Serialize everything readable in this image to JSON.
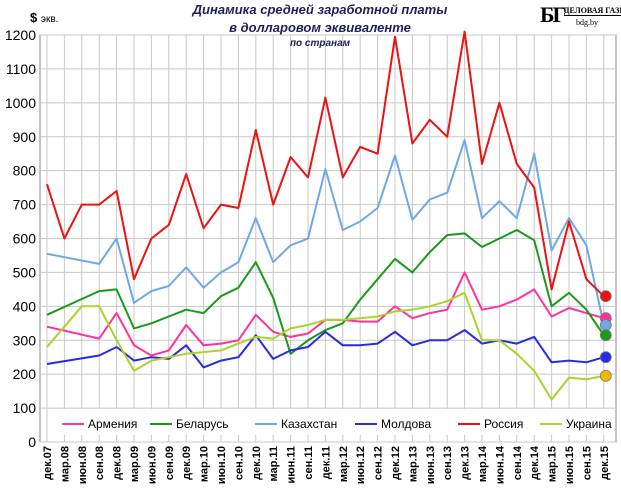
{
  "header": {
    "title_line1": "Динамика средней заработной платы",
    "title_line2": "в долларовом эквиваленте",
    "title_line3": "по странам",
    "unit_symbol": "$",
    "unit_text": "экв.",
    "logo_mark": "БГ",
    "logo_name": "ДЕЛОВАЯ ГАЗЕТА",
    "logo_site": "bdg.by"
  },
  "chart_data": {
    "type": "line",
    "title": "Динамика средней заработной платы в долларовом эквиваленте",
    "subtitle": "по странам",
    "ylabel": "$ экв.",
    "ylim": [
      0,
      1200
    ],
    "yticks": [
      0,
      100,
      200,
      300,
      400,
      500,
      600,
      700,
      800,
      900,
      1000,
      1100,
      1200
    ],
    "grid": true,
    "legend_position": "bottom-inside",
    "x_start": "2007-12",
    "x_end": "2015-12",
    "x_tick_labels": [
      "дек.07",
      "мар.08",
      "июн.08",
      "сен.08",
      "дек.08",
      "мар.09",
      "июн.09",
      "сен.09",
      "дек.09",
      "мар.10",
      "июн.10",
      "сен.10",
      "дек.10",
      "мар.11",
      "июн.11",
      "сен.11",
      "дек.11",
      "мар.12",
      "июн.12",
      "сен.12",
      "дек.12",
      "мар.13",
      "июн.13",
      "сен.13",
      "дек.13",
      "мар.14",
      "июн.14",
      "сен.14",
      "дек.14",
      "мар.15",
      "июн.15",
      "сен.15",
      "дек.15"
    ],
    "series": [
      {
        "name": "Армения",
        "color": "#ff3399",
        "points": [
          [
            "дек.07",
            340
          ],
          [
            "сен.08",
            305
          ],
          [
            "дек.08",
            380
          ],
          [
            "мар.09",
            285
          ],
          [
            "июн.09",
            255
          ],
          [
            "сен.09",
            270
          ],
          [
            "дек.09",
            345
          ],
          [
            "мар.10",
            285
          ],
          [
            "июн.10",
            290
          ],
          [
            "сен.10",
            300
          ],
          [
            "дек.10",
            375
          ],
          [
            "мар.11",
            325
          ],
          [
            "июн.11",
            310
          ],
          [
            "сен.11",
            320
          ],
          [
            "дек.11",
            360
          ],
          [
            "мар.12",
            360
          ],
          [
            "июн.12",
            355
          ],
          [
            "сен.12",
            355
          ],
          [
            "дек.12",
            400
          ],
          [
            "мар.13",
            365
          ],
          [
            "июн.13",
            380
          ],
          [
            "сен.13",
            390
          ],
          [
            "дек.13",
            500
          ],
          [
            "мар.14",
            390
          ],
          [
            "июн.14",
            400
          ],
          [
            "сен.14",
            420
          ],
          [
            "дек.14",
            450
          ],
          [
            "мар.15",
            370
          ],
          [
            "июн.15",
            395
          ],
          [
            "сен.15",
            380
          ],
          [
            "дек.15",
            365
          ]
        ]
      },
      {
        "name": "Беларусь",
        "color": "#1a9a1a",
        "points": [
          [
            "дек.07",
            375
          ],
          [
            "сен.08",
            445
          ],
          [
            "дек.08",
            450
          ],
          [
            "мар.09",
            335
          ],
          [
            "июн.09",
            350
          ],
          [
            "сен.09",
            370
          ],
          [
            "дек.09",
            390
          ],
          [
            "мар.10",
            380
          ],
          [
            "июн.10",
            430
          ],
          [
            "сен.10",
            455
          ],
          [
            "дек.10",
            530
          ],
          [
            "мар.11",
            425
          ],
          [
            "июн.11",
            260
          ],
          [
            "сен.11",
            300
          ],
          [
            "дек.11",
            330
          ],
          [
            "мар.12",
            350
          ],
          [
            "июн.12",
            420
          ],
          [
            "сен.12",
            480
          ],
          [
            "дек.12",
            540
          ],
          [
            "мар.13",
            500
          ],
          [
            "июн.13",
            560
          ],
          [
            "сен.13",
            610
          ],
          [
            "дек.13",
            615
          ],
          [
            "мар.14",
            575
          ],
          [
            "июн.14",
            600
          ],
          [
            "сен.14",
            625
          ],
          [
            "дек.14",
            595
          ],
          [
            "мар.15",
            400
          ],
          [
            "июн.15",
            440
          ],
          [
            "сен.15",
            390
          ],
          [
            "дек.15",
            315
          ]
        ]
      },
      {
        "name": "Казахстан",
        "color": "#6fa8e8",
        "points": [
          [
            "дек.07",
            555
          ],
          [
            "сен.08",
            525
          ],
          [
            "дек.08",
            600
          ],
          [
            "мар.09",
            410
          ],
          [
            "июн.09",
            445
          ],
          [
            "сен.09",
            460
          ],
          [
            "дек.09",
            515
          ],
          [
            "мар.10",
            455
          ],
          [
            "июн.10",
            500
          ],
          [
            "сен.10",
            530
          ],
          [
            "дек.10",
            660
          ],
          [
            "мар.11",
            530
          ],
          [
            "июн.11",
            580
          ],
          [
            "сен.11",
            600
          ],
          [
            "дек.11",
            805
          ],
          [
            "мар.12",
            625
          ],
          [
            "июн.12",
            650
          ],
          [
            "сен.12",
            690
          ],
          [
            "дек.12",
            845
          ],
          [
            "мар.13",
            655
          ],
          [
            "июн.13",
            715
          ],
          [
            "сен.13",
            735
          ],
          [
            "дек.13",
            890
          ],
          [
            "мар.14",
            660
          ],
          [
            "июн.14",
            710
          ],
          [
            "сен.14",
            660
          ],
          [
            "дек.14",
            850
          ],
          [
            "мар.15",
            565
          ],
          [
            "июн.15",
            660
          ],
          [
            "сен.15",
            580
          ],
          [
            "дек.15",
            345
          ]
        ]
      },
      {
        "name": "Молдова",
        "color": "#2a2ae0",
        "points": [
          [
            "дек.07",
            230
          ],
          [
            "сен.08",
            255
          ],
          [
            "дек.08",
            280
          ],
          [
            "мар.09",
            240
          ],
          [
            "июн.09",
            250
          ],
          [
            "сен.09",
            245
          ],
          [
            "дек.09",
            285
          ],
          [
            "мар.10",
            220
          ],
          [
            "июн.10",
            240
          ],
          [
            "сен.10",
            250
          ],
          [
            "дек.10",
            315
          ],
          [
            "мар.11",
            245
          ],
          [
            "июн.11",
            270
          ],
          [
            "сен.11",
            280
          ],
          [
            "дек.11",
            325
          ],
          [
            "мар.12",
            285
          ],
          [
            "июн.12",
            285
          ],
          [
            "сен.12",
            290
          ],
          [
            "дек.12",
            325
          ],
          [
            "мар.13",
            285
          ],
          [
            "июн.13",
            300
          ],
          [
            "сен.13",
            300
          ],
          [
            "дек.13",
            330
          ],
          [
            "мар.14",
            290
          ],
          [
            "июн.14",
            300
          ],
          [
            "сен.14",
            290
          ],
          [
            "дек.14",
            310
          ],
          [
            "мар.15",
            235
          ],
          [
            "июн.15",
            240
          ],
          [
            "сен.15",
            235
          ],
          [
            "дек.15",
            250
          ]
        ]
      },
      {
        "name": "Россия",
        "color": "#ee1111",
        "points": [
          [
            "дек.07",
            760
          ],
          [
            "мар.08",
            600
          ],
          [
            "июн.08",
            700
          ],
          [
            "сен.08",
            700
          ],
          [
            "дек.08",
            740
          ],
          [
            "мар.09",
            480
          ],
          [
            "июн.09",
            600
          ],
          [
            "сен.09",
            640
          ],
          [
            "дек.09",
            790
          ],
          [
            "мар.10",
            630
          ],
          [
            "июн.10",
            700
          ],
          [
            "сен.10",
            690
          ],
          [
            "дек.10",
            920
          ],
          [
            "мар.11",
            700
          ],
          [
            "июн.11",
            840
          ],
          [
            "сен.11",
            780
          ],
          [
            "дек.11",
            1015
          ],
          [
            "мар.12",
            780
          ],
          [
            "июн.12",
            870
          ],
          [
            "сен.12",
            850
          ],
          [
            "дек.12",
            1195
          ],
          [
            "мар.13",
            880
          ],
          [
            "июн.13",
            950
          ],
          [
            "сен.13",
            900
          ],
          [
            "дек.13",
            1210
          ],
          [
            "мар.14",
            820
          ],
          [
            "июн.14",
            1000
          ],
          [
            "сен.14",
            820
          ],
          [
            "дек.14",
            750
          ],
          [
            "мар.15",
            450
          ],
          [
            "июн.15",
            650
          ],
          [
            "сен.15",
            480
          ],
          [
            "дек.15",
            430
          ]
        ]
      },
      {
        "name": "Украина",
        "color": "#aad42a",
        "points": [
          [
            "дек.07",
            280
          ],
          [
            "июн.08",
            400
          ],
          [
            "сен.08",
            400
          ],
          [
            "дек.08",
            300
          ],
          [
            "мар.09",
            210
          ],
          [
            "июн.09",
            240
          ],
          [
            "сен.09",
            250
          ],
          [
            "дек.09",
            260
          ],
          [
            "мар.10",
            265
          ],
          [
            "июн.10",
            270
          ],
          [
            "сен.10",
            290
          ],
          [
            "дек.10",
            310
          ],
          [
            "мар.11",
            305
          ],
          [
            "июн.11",
            335
          ],
          [
            "сен.11",
            345
          ],
          [
            "дек.11",
            360
          ],
          [
            "мар.12",
            360
          ],
          [
            "июн.12",
            365
          ],
          [
            "сен.12",
            370
          ],
          [
            "дек.12",
            385
          ],
          [
            "мар.13",
            390
          ],
          [
            "июн.13",
            400
          ],
          [
            "сен.13",
            415
          ],
          [
            "дек.13",
            440
          ],
          [
            "мар.14",
            300
          ],
          [
            "июн.14",
            300
          ],
          [
            "сен.14",
            260
          ],
          [
            "дек.14",
            210
          ],
          [
            "мар.15",
            125
          ],
          [
            "июн.15",
            190
          ],
          [
            "сен.15",
            185
          ],
          [
            "дек.15",
            195
          ]
        ]
      }
    ],
    "endpoint_markers": [
      {
        "series": "Россия",
        "value": 430,
        "color": "#ee1111"
      },
      {
        "series": "Армения",
        "value": 365,
        "color": "#ff3399"
      },
      {
        "series": "Казахстан",
        "value": 345,
        "color": "#6fa8e8"
      },
      {
        "series": "Беларусь",
        "value": 315,
        "color": "#1a9a1a"
      },
      {
        "series": "Молдова",
        "value": 250,
        "color": "#2a2ae0"
      },
      {
        "series": "Украина",
        "value": 195,
        "color": "#f5b800"
      }
    ]
  }
}
